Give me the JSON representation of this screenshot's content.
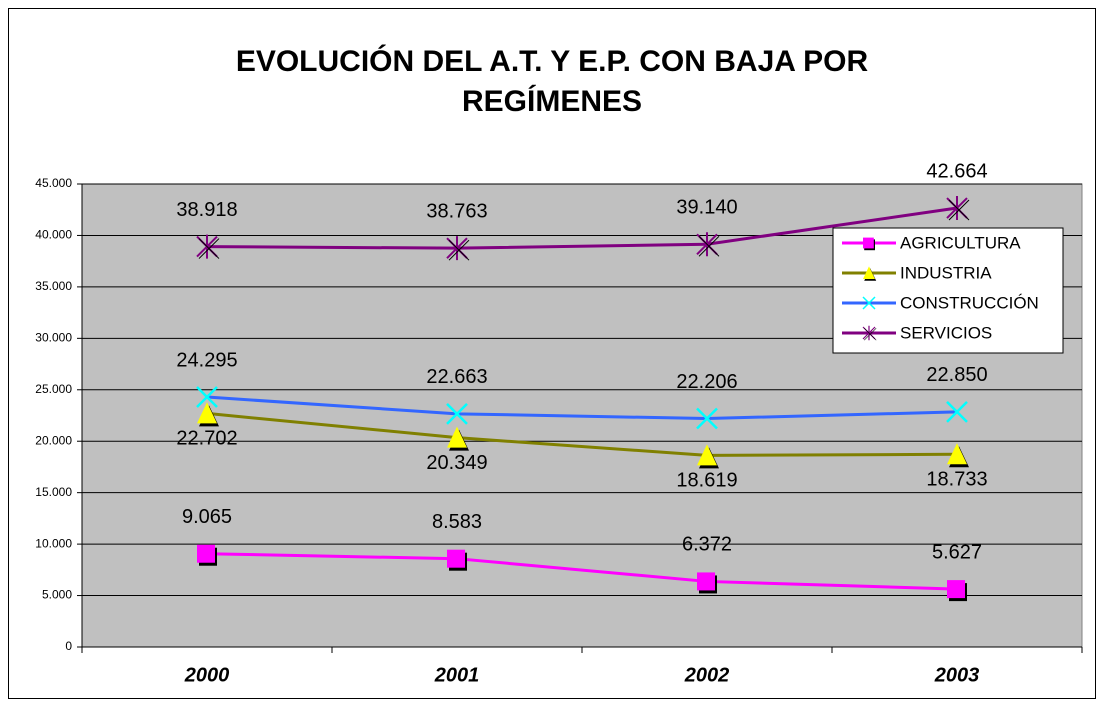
{
  "chart_data": {
    "type": "line",
    "title": [
      "EVOLUCIÓN DEL A.T. Y E.P. CON BAJA POR",
      "REGÍMENES"
    ],
    "categories": [
      "2000",
      "2001",
      "2002",
      "2003"
    ],
    "series": [
      {
        "name": "AGRICULTURA",
        "color": "#ff00ff",
        "marker": "square",
        "marker_color": "#ff00ff",
        "label_position": "above",
        "values": [
          9065,
          8583,
          6372,
          5627
        ],
        "value_labels": [
          "9.065",
          "8.583",
          "6.372",
          "5.627"
        ]
      },
      {
        "name": "INDUSTRIA",
        "color": "#808000",
        "marker": "triangle",
        "marker_color": "#ffff00",
        "label_position": "below",
        "values": [
          22702,
          20349,
          18619,
          18733
        ],
        "value_labels": [
          "22.702",
          "20.349",
          "18.619",
          "18.733"
        ]
      },
      {
        "name": "CONSTRUCCIÓN",
        "color": "#3366ff",
        "marker": "x",
        "marker_color": "#00ffff",
        "label_position": "above",
        "values": [
          24295,
          22663,
          22206,
          22850
        ],
        "value_labels": [
          "24.295",
          "22.663",
          "22.206",
          "22.850"
        ]
      },
      {
        "name": "SERVICIOS",
        "color": "#800080",
        "marker": "star",
        "marker_color": "#800080",
        "label_position": "above",
        "values": [
          38918,
          38763,
          39140,
          42664
        ],
        "value_labels": [
          "38.918",
          "38.763",
          "39.140",
          "42.664"
        ]
      }
    ],
    "ylim": [
      0,
      45000
    ],
    "yticks": [
      0,
      {
        "value": 5000,
        "label": "5.000"
      },
      {
        "value": 10000,
        "label": "10.000"
      },
      {
        "value": 15000,
        "label": "15.000"
      },
      {
        "value": 20000,
        "label": "20.000"
      },
      {
        "value": 25000,
        "label": "25.000"
      },
      {
        "value": 30000,
        "label": "30.000"
      },
      {
        "value": 35000,
        "label": "35.000"
      },
      {
        "value": 40000,
        "label": "40.000"
      },
      {
        "value": 45000,
        "label": "45.000"
      }
    ],
    "grid": true,
    "legend": "right",
    "plot_background": "#c0c0c0"
  }
}
